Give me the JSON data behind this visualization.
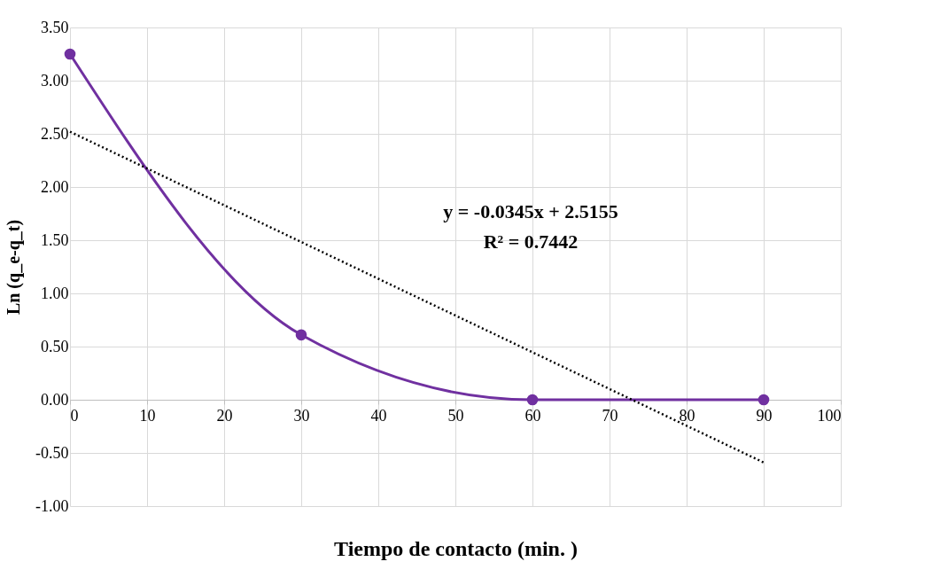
{
  "chart_data": {
    "type": "line",
    "xlabel": "Tiempo de contacto (min. )",
    "ylabel": "Ln (q_e-q_t)",
    "x": [
      0,
      30,
      60,
      90
    ],
    "series": [
      {
        "color": "#7030a0",
        "values": [
          3.25,
          0.61,
          0,
          0
        ],
        "marker": "circle"
      },
      {
        "type": "line",
        "color": "#000000",
        "x": [
          0,
          90
        ],
        "values": [
          2.52,
          -0.59
        ],
        "line_style": "dotted",
        "marker": "none"
      }
    ],
    "xlim": [
      0,
      100
    ],
    "xticks": [
      0,
      10,
      20,
      30,
      40,
      50,
      60,
      70,
      80,
      90,
      100
    ],
    "ylim": [
      -1,
      3.5
    ],
    "yticks": [
      {
        "value": -1,
        "label": "-1.00"
      },
      {
        "value": -0.5,
        "label": "-0.50"
      },
      {
        "value": 0,
        "label": "0.00"
      },
      {
        "value": 0.5,
        "label": "0.50"
      },
      {
        "value": 1,
        "label": "1.00"
      },
      {
        "value": 1.5,
        "label": "1.50"
      },
      {
        "value": 2,
        "label": "2.00"
      },
      {
        "value": 2.5,
        "label": "2.50"
      },
      {
        "value": 3,
        "label": "3.00"
      },
      {
        "value": 3.5,
        "label": "3.50"
      }
    ],
    "grid": true,
    "annotations": [
      "y = -0.0345x + 2.5155",
      "R² = 0.7442"
    ]
  }
}
